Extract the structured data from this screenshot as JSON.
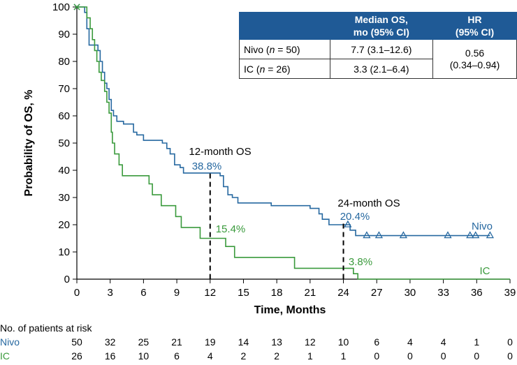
{
  "colors": {
    "nivo": "#2668a0",
    "ic": "#3a9a3c",
    "header_bg": "#1f5a96"
  },
  "chart_data": {
    "type": "line",
    "subtype": "kaplan-meier",
    "xlabel": "Time, Months",
    "ylabel": "Probability of OS, %",
    "xlim": [
      0,
      39
    ],
    "ylim": [
      0,
      100
    ],
    "xticks": [
      "0",
      "3",
      "6",
      "9",
      "12",
      "15",
      "18",
      "21",
      "24",
      "27",
      "30",
      "33",
      "36",
      "39"
    ],
    "yticks": [
      "0",
      "10",
      "20",
      "30",
      "40",
      "50",
      "60",
      "70",
      "80",
      "90",
      "100"
    ],
    "series": [
      {
        "name": "Nivo",
        "color": "#2668a0",
        "steps": [
          [
            0,
            100
          ],
          [
            0.7,
            98
          ],
          [
            0.9,
            92
          ],
          [
            1.1,
            86
          ],
          [
            1.9,
            84
          ],
          [
            2.1,
            80
          ],
          [
            2.3,
            76
          ],
          [
            2.5,
            72
          ],
          [
            2.7,
            70
          ],
          [
            2.9,
            66
          ],
          [
            3.1,
            62
          ],
          [
            3.3,
            60
          ],
          [
            3.6,
            58
          ],
          [
            4.2,
            57
          ],
          [
            5.1,
            54
          ],
          [
            5.4,
            53
          ],
          [
            6.0,
            51
          ],
          [
            7.7,
            50
          ],
          [
            8.1,
            48
          ],
          [
            8.4,
            46
          ],
          [
            8.8,
            42
          ],
          [
            9.3,
            41
          ],
          [
            9.6,
            39
          ],
          [
            11.9,
            39
          ],
          [
            12.9,
            38
          ],
          [
            13.2,
            34
          ],
          [
            13.6,
            31
          ],
          [
            14.0,
            30
          ],
          [
            14.5,
            28
          ],
          [
            17.5,
            27
          ],
          [
            20.1,
            27
          ],
          [
            21.0,
            26
          ],
          [
            21.8,
            24
          ],
          [
            22.1,
            22
          ],
          [
            22.7,
            20
          ],
          [
            24.0,
            20
          ],
          [
            24.6,
            18
          ],
          [
            25.1,
            16
          ],
          [
            37.2,
            16
          ]
        ],
        "censor_x": [
          24.4,
          26.1,
          27.2,
          29.4,
          33.4,
          35.4,
          35.9,
          37.2
        ]
      },
      {
        "name": "IC",
        "color": "#3a9a3c",
        "steps": [
          [
            0,
            100
          ],
          [
            0.9,
            96
          ],
          [
            1.2,
            92
          ],
          [
            1.4,
            88
          ],
          [
            1.6,
            84
          ],
          [
            1.8,
            80
          ],
          [
            2.0,
            76
          ],
          [
            2.2,
            73
          ],
          [
            2.5,
            69
          ],
          [
            2.7,
            65
          ],
          [
            2.9,
            61
          ],
          [
            3.1,
            54
          ],
          [
            3.2,
            50
          ],
          [
            3.4,
            46
          ],
          [
            3.8,
            42
          ],
          [
            4.1,
            38
          ],
          [
            6.5,
            35
          ],
          [
            6.8,
            31
          ],
          [
            7.6,
            27
          ],
          [
            8.9,
            23
          ],
          [
            9.4,
            19
          ],
          [
            11.1,
            15
          ],
          [
            13.4,
            12
          ],
          [
            14.2,
            8
          ],
          [
            19.6,
            4
          ],
          [
            24.0,
            4
          ],
          [
            24.9,
            2
          ],
          [
            25.3,
            0
          ],
          [
            39,
            0
          ]
        ],
        "censor_x": []
      }
    ],
    "annotations": {
      "os12_title": "12-month OS",
      "os12_nivo": "38.8%",
      "os12_ic": "15.4%",
      "os24_title": "24-month OS",
      "os24_nivo": "20.4%",
      "os24_ic": "3.8%",
      "os12_nivo_value": 38.8,
      "os24_nivo_value": 20.4,
      "os12_x": 12,
      "os24_x": 24,
      "nivo_end_label": "Nivo",
      "ic_end_label": "IC"
    }
  },
  "table": {
    "header_median": "Median OS,",
    "header_median_sub": "mo (95% CI)",
    "header_hr": "HR",
    "header_hr_sub": "(95% CI)",
    "row_nivo_prefix": "Nivo (",
    "row_nivo_n": "n",
    "row_nivo_suffix": " = 50)",
    "row_nivo_median": "7.7 (3.1–12.6)",
    "row_ic_prefix": "IC (",
    "row_ic_n": "n",
    "row_ic_suffix": " = 26)",
    "row_ic_median": "3.3 (2.1–6.4)",
    "hr_value": "0.56",
    "hr_ci": "(0.34–0.94)"
  },
  "risk": {
    "title": "No. of patients at risk",
    "nivo_label": "Nivo",
    "ic_label": "IC",
    "nivo": [
      "50",
      "32",
      "25",
      "21",
      "19",
      "14",
      "13",
      "12",
      "10",
      "6",
      "4",
      "4",
      "1",
      "0"
    ],
    "ic": [
      "26",
      "16",
      "10",
      "6",
      "4",
      "2",
      "2",
      "1",
      "1",
      "0",
      "0",
      "0",
      "0",
      "0"
    ]
  }
}
